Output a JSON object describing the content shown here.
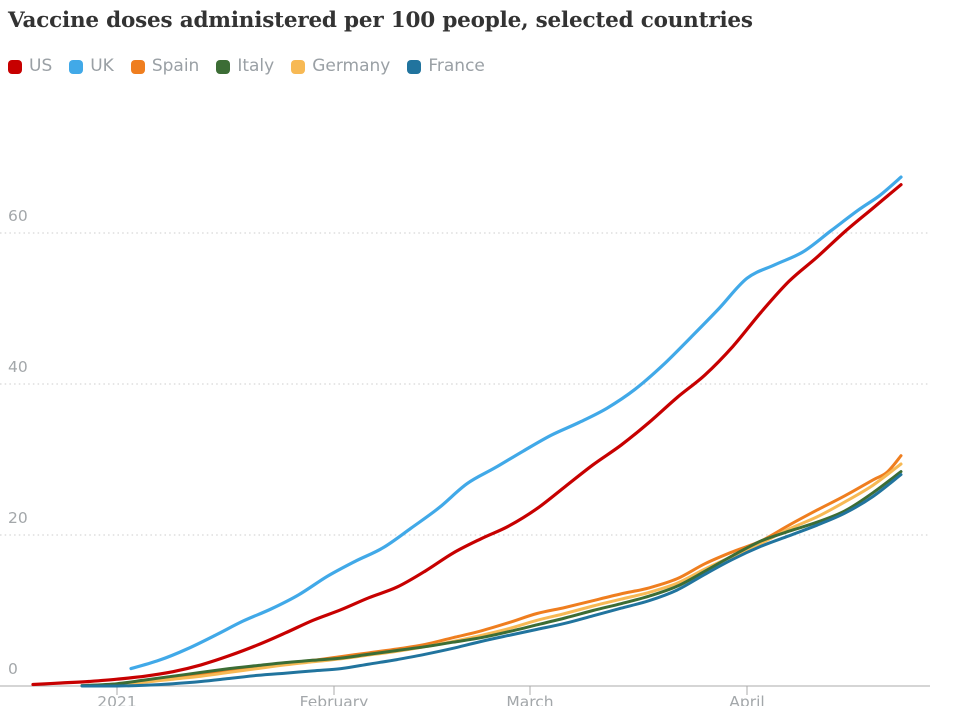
{
  "title": "Vaccine doses administered per 100 people, selected countries",
  "legend": [
    {
      "label": "US",
      "color": "#c70000"
    },
    {
      "label": "UK",
      "color": "#41a9e8"
    },
    {
      "label": "Spain",
      "color": "#ef7e1f"
    },
    {
      "label": "Italy",
      "color": "#3c6d35"
    },
    {
      "label": "Germany",
      "color": "#f7b954"
    },
    {
      "label": "France",
      "color": "#21749e"
    }
  ],
  "chart_data": {
    "type": "line",
    "title": "Vaccine doses administered per 100 people, selected countries",
    "xlabel": "",
    "ylabel": "doses per 100 people",
    "ylim": [
      0,
      70
    ],
    "grid": "horizontal-dotted",
    "legend_position": "top-left",
    "y_ticks": [
      0,
      20,
      40,
      60
    ],
    "x_ticks": [
      {
        "label": "2021",
        "date": "2021-01-01"
      },
      {
        "label": "February",
        "date": "2021-02-01"
      },
      {
        "label": "March",
        "date": "2021-03-01"
      },
      {
        "label": "April",
        "date": "2021-04-01"
      }
    ],
    "series": [
      {
        "name": "US",
        "color": "#c70000",
        "width": 3.2,
        "points": [
          [
            "2020-12-20",
            0.2
          ],
          [
            "2020-12-24",
            0.4
          ],
          [
            "2020-12-28",
            0.6
          ],
          [
            "2021-01-01",
            0.9
          ],
          [
            "2021-01-05",
            1.3
          ],
          [
            "2021-01-09",
            1.9
          ],
          [
            "2021-01-13",
            2.8
          ],
          [
            "2021-01-17",
            4.0
          ],
          [
            "2021-01-21",
            5.4
          ],
          [
            "2021-01-25",
            7.0
          ],
          [
            "2021-01-29",
            8.7
          ],
          [
            "2021-02-02",
            10.1
          ],
          [
            "2021-02-06",
            11.7
          ],
          [
            "2021-02-10",
            13.1
          ],
          [
            "2021-02-14",
            15.2
          ],
          [
            "2021-02-18",
            17.6
          ],
          [
            "2021-02-22",
            19.5
          ],
          [
            "2021-02-26",
            21.2
          ],
          [
            "2021-03-02",
            23.5
          ],
          [
            "2021-03-06",
            26.4
          ],
          [
            "2021-03-10",
            29.3
          ],
          [
            "2021-03-14",
            31.9
          ],
          [
            "2021-03-18",
            34.9
          ],
          [
            "2021-03-22",
            38.2
          ],
          [
            "2021-03-26",
            41.2
          ],
          [
            "2021-03-30",
            45.0
          ],
          [
            "2021-04-03",
            49.5
          ],
          [
            "2021-04-07",
            53.6
          ],
          [
            "2021-04-11",
            56.8
          ],
          [
            "2021-04-15",
            60.2
          ],
          [
            "2021-04-19",
            63.3
          ],
          [
            "2021-04-23",
            66.4
          ]
        ]
      },
      {
        "name": "UK",
        "color": "#41a9e8",
        "width": 3.2,
        "points": [
          [
            "2021-01-03",
            2.3
          ],
          [
            "2021-01-07",
            3.4
          ],
          [
            "2021-01-11",
            4.9
          ],
          [
            "2021-01-15",
            6.7
          ],
          [
            "2021-01-19",
            8.6
          ],
          [
            "2021-01-23",
            10.2
          ],
          [
            "2021-01-27",
            12.1
          ],
          [
            "2021-01-31",
            14.5
          ],
          [
            "2021-02-04",
            16.5
          ],
          [
            "2021-02-08",
            18.3
          ],
          [
            "2021-02-12",
            20.9
          ],
          [
            "2021-02-16",
            23.6
          ],
          [
            "2021-02-20",
            26.8
          ],
          [
            "2021-02-24",
            28.9
          ],
          [
            "2021-02-28",
            31.1
          ],
          [
            "2021-03-04",
            33.2
          ],
          [
            "2021-03-08",
            34.9
          ],
          [
            "2021-03-12",
            36.8
          ],
          [
            "2021-03-16",
            39.3
          ],
          [
            "2021-03-20",
            42.5
          ],
          [
            "2021-03-24",
            46.2
          ],
          [
            "2021-03-28",
            50.0
          ],
          [
            "2021-04-01",
            54.0
          ],
          [
            "2021-04-05",
            55.8
          ],
          [
            "2021-04-09",
            57.5
          ],
          [
            "2021-04-13",
            60.3
          ],
          [
            "2021-04-17",
            63.1
          ],
          [
            "2021-04-20",
            65.0
          ],
          [
            "2021-04-23",
            67.4
          ]
        ]
      },
      {
        "name": "Spain",
        "color": "#ef7e1f",
        "width": 3,
        "points": [
          [
            "2020-12-27",
            0.05
          ],
          [
            "2021-01-01",
            0.2
          ],
          [
            "2021-01-05",
            0.6
          ],
          [
            "2021-01-09",
            1.1
          ],
          [
            "2021-01-13",
            1.6
          ],
          [
            "2021-01-17",
            2.1
          ],
          [
            "2021-01-21",
            2.6
          ],
          [
            "2021-01-25",
            3.0
          ],
          [
            "2021-01-29",
            3.4
          ],
          [
            "2021-02-02",
            3.9
          ],
          [
            "2021-02-06",
            4.4
          ],
          [
            "2021-02-10",
            4.9
          ],
          [
            "2021-02-14",
            5.5
          ],
          [
            "2021-02-18",
            6.4
          ],
          [
            "2021-02-22",
            7.3
          ],
          [
            "2021-02-26",
            8.4
          ],
          [
            "2021-03-02",
            9.6
          ],
          [
            "2021-03-06",
            10.4
          ],
          [
            "2021-03-10",
            11.3
          ],
          [
            "2021-03-14",
            12.2
          ],
          [
            "2021-03-18",
            13.0
          ],
          [
            "2021-03-22",
            14.2
          ],
          [
            "2021-03-26",
            16.2
          ],
          [
            "2021-03-30",
            17.8
          ],
          [
            "2021-04-03",
            19.2
          ],
          [
            "2021-04-07",
            21.3
          ],
          [
            "2021-04-11",
            23.3
          ],
          [
            "2021-04-15",
            25.2
          ],
          [
            "2021-04-19",
            27.3
          ],
          [
            "2021-04-21",
            28.3
          ],
          [
            "2021-04-23",
            30.5
          ]
        ]
      },
      {
        "name": "Germany",
        "color": "#f7b954",
        "width": 3,
        "points": [
          [
            "2020-12-27",
            0.05
          ],
          [
            "2021-01-01",
            0.2
          ],
          [
            "2021-01-05",
            0.5
          ],
          [
            "2021-01-09",
            0.9
          ],
          [
            "2021-01-13",
            1.3
          ],
          [
            "2021-01-17",
            1.8
          ],
          [
            "2021-01-21",
            2.3
          ],
          [
            "2021-01-25",
            2.8
          ],
          [
            "2021-01-29",
            3.2
          ],
          [
            "2021-02-02",
            3.6
          ],
          [
            "2021-02-06",
            4.1
          ],
          [
            "2021-02-10",
            4.6
          ],
          [
            "2021-02-14",
            5.2
          ],
          [
            "2021-02-18",
            5.9
          ],
          [
            "2021-02-22",
            6.7
          ],
          [
            "2021-02-26",
            7.6
          ],
          [
            "2021-03-02",
            8.7
          ],
          [
            "2021-03-06",
            9.6
          ],
          [
            "2021-03-10",
            10.6
          ],
          [
            "2021-03-14",
            11.5
          ],
          [
            "2021-03-18",
            12.4
          ],
          [
            "2021-03-22",
            13.6
          ],
          [
            "2021-03-26",
            15.5
          ],
          [
            "2021-03-30",
            17.2
          ],
          [
            "2021-04-03",
            18.9
          ],
          [
            "2021-04-07",
            20.8
          ],
          [
            "2021-04-11",
            22.4
          ],
          [
            "2021-04-15",
            24.4
          ],
          [
            "2021-04-19",
            26.6
          ],
          [
            "2021-04-23",
            29.4
          ]
        ]
      },
      {
        "name": "Italy",
        "color": "#3c6d35",
        "width": 3,
        "points": [
          [
            "2020-12-27",
            0.05
          ],
          [
            "2021-01-01",
            0.3
          ],
          [
            "2021-01-05",
            0.8
          ],
          [
            "2021-01-09",
            1.3
          ],
          [
            "2021-01-13",
            1.8
          ],
          [
            "2021-01-17",
            2.3
          ],
          [
            "2021-01-21",
            2.7
          ],
          [
            "2021-01-25",
            3.1
          ],
          [
            "2021-01-29",
            3.4
          ],
          [
            "2021-02-02",
            3.7
          ],
          [
            "2021-02-06",
            4.2
          ],
          [
            "2021-02-10",
            4.7
          ],
          [
            "2021-02-14",
            5.2
          ],
          [
            "2021-02-18",
            5.8
          ],
          [
            "2021-02-22",
            6.4
          ],
          [
            "2021-02-26",
            7.2
          ],
          [
            "2021-03-02",
            8.1
          ],
          [
            "2021-03-06",
            9.0
          ],
          [
            "2021-03-10",
            10.0
          ],
          [
            "2021-03-14",
            10.9
          ],
          [
            "2021-03-18",
            11.9
          ],
          [
            "2021-03-22",
            13.2
          ],
          [
            "2021-03-26",
            15.2
          ],
          [
            "2021-03-30",
            17.3
          ],
          [
            "2021-04-03",
            19.2
          ],
          [
            "2021-04-07",
            20.5
          ],
          [
            "2021-04-11",
            21.7
          ],
          [
            "2021-04-15",
            23.2
          ],
          [
            "2021-04-19",
            25.6
          ],
          [
            "2021-04-23",
            28.4
          ]
        ]
      },
      {
        "name": "France",
        "color": "#21749e",
        "width": 3,
        "points": [
          [
            "2020-12-27",
            0.0
          ],
          [
            "2021-01-01",
            0.0
          ],
          [
            "2021-01-05",
            0.1
          ],
          [
            "2021-01-09",
            0.3
          ],
          [
            "2021-01-13",
            0.6
          ],
          [
            "2021-01-17",
            1.0
          ],
          [
            "2021-01-21",
            1.4
          ],
          [
            "2021-01-25",
            1.7
          ],
          [
            "2021-01-29",
            2.0
          ],
          [
            "2021-02-02",
            2.3
          ],
          [
            "2021-02-06",
            2.9
          ],
          [
            "2021-02-10",
            3.5
          ],
          [
            "2021-02-14",
            4.2
          ],
          [
            "2021-02-18",
            5.0
          ],
          [
            "2021-02-22",
            5.9
          ],
          [
            "2021-02-26",
            6.7
          ],
          [
            "2021-03-02",
            7.5
          ],
          [
            "2021-03-06",
            8.3
          ],
          [
            "2021-03-10",
            9.3
          ],
          [
            "2021-03-14",
            10.3
          ],
          [
            "2021-03-18",
            11.3
          ],
          [
            "2021-03-22",
            12.7
          ],
          [
            "2021-03-26",
            14.8
          ],
          [
            "2021-03-30",
            16.8
          ],
          [
            "2021-04-03",
            18.5
          ],
          [
            "2021-04-07",
            19.9
          ],
          [
            "2021-04-11",
            21.3
          ],
          [
            "2021-04-15",
            22.9
          ],
          [
            "2021-04-19",
            25.1
          ],
          [
            "2021-04-23",
            28.0
          ]
        ]
      }
    ]
  }
}
